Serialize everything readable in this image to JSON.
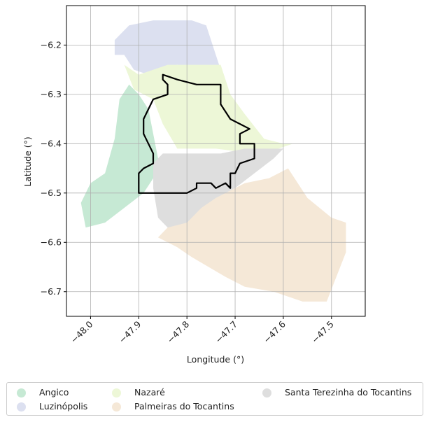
{
  "map": {
    "xlabel": "Longitude (°)",
    "ylabel": "Latitude (°)",
    "xlim": [
      -48.05,
      -47.43
    ],
    "ylim": [
      -6.75,
      -6.12
    ],
    "xticks": [
      -48.0,
      -47.9,
      -47.8,
      -47.7,
      -47.6,
      -47.5
    ],
    "xtick_labels": [
      "−48.0",
      "−47.9",
      "−47.8",
      "−47.7",
      "−47.6",
      "−47.5"
    ],
    "yticks": [
      -6.2,
      -6.3,
      -6.4,
      -6.5,
      -6.6,
      -6.7
    ],
    "ytick_labels": [
      "−6.2",
      "−6.3",
      "−6.4",
      "−6.5",
      "−6.6",
      "−6.7"
    ],
    "grid": true,
    "legend_position": "bottom-center"
  },
  "regions": [
    {
      "name": "Angico",
      "color": "#c6e9d4",
      "coords": [
        [
          -47.9,
          -6.3
        ],
        [
          -47.88,
          -6.33
        ],
        [
          -47.87,
          -6.38
        ],
        [
          -47.86,
          -6.43
        ],
        [
          -47.87,
          -6.47
        ],
        [
          -47.89,
          -6.5
        ],
        [
          -47.93,
          -6.53
        ],
        [
          -47.97,
          -6.56
        ],
        [
          -48.01,
          -6.57
        ],
        [
          -48.02,
          -6.52
        ],
        [
          -48.0,
          -6.48
        ],
        [
          -47.97,
          -6.46
        ],
        [
          -47.95,
          -6.39
        ],
        [
          -47.94,
          -6.31
        ],
        [
          -47.92,
          -6.28
        ]
      ]
    },
    {
      "name": "Luzinópolis",
      "color": "#dce0f0",
      "coords": [
        [
          -47.95,
          -6.19
        ],
        [
          -47.92,
          -6.16
        ],
        [
          -47.87,
          -6.15
        ],
        [
          -47.82,
          -6.15
        ],
        [
          -47.79,
          -6.15
        ],
        [
          -47.76,
          -6.16
        ],
        [
          -47.73,
          -6.25
        ],
        [
          -47.76,
          -6.25
        ],
        [
          -47.82,
          -6.24
        ],
        [
          -47.88,
          -6.26
        ],
        [
          -47.91,
          -6.25
        ],
        [
          -47.93,
          -6.22
        ],
        [
          -47.95,
          -6.22
        ]
      ]
    },
    {
      "name": "Nazaré",
      "color": "#edf7d7",
      "coords": [
        [
          -47.93,
          -6.24
        ],
        [
          -47.9,
          -6.26
        ],
        [
          -47.84,
          -6.24
        ],
        [
          -47.79,
          -6.24
        ],
        [
          -47.76,
          -6.24
        ],
        [
          -47.73,
          -6.24
        ],
        [
          -47.71,
          -6.3
        ],
        [
          -47.68,
          -6.34
        ],
        [
          -47.64,
          -6.39
        ],
        [
          -47.6,
          -6.4
        ],
        [
          -47.58,
          -6.4
        ],
        [
          -47.61,
          -6.41
        ],
        [
          -47.66,
          -6.42
        ],
        [
          -47.74,
          -6.41
        ],
        [
          -47.82,
          -6.41
        ],
        [
          -47.85,
          -6.36
        ],
        [
          -47.87,
          -6.31
        ],
        [
          -47.91,
          -6.29
        ]
      ]
    },
    {
      "name": "Palmeiras do Tocantins",
      "color": "#f5e8d7",
      "coords": [
        [
          -47.84,
          -6.57
        ],
        [
          -47.8,
          -6.54
        ],
        [
          -47.76,
          -6.51
        ],
        [
          -47.72,
          -6.5
        ],
        [
          -47.68,
          -6.48
        ],
        [
          -47.63,
          -6.47
        ],
        [
          -47.59,
          -6.45
        ],
        [
          -47.55,
          -6.51
        ],
        [
          -47.5,
          -6.55
        ],
        [
          -47.47,
          -6.56
        ],
        [
          -47.47,
          -6.62
        ],
        [
          -47.49,
          -6.67
        ],
        [
          -47.51,
          -6.72
        ],
        [
          -47.56,
          -6.72
        ],
        [
          -47.62,
          -6.7
        ],
        [
          -47.68,
          -6.69
        ],
        [
          -47.72,
          -6.67
        ],
        [
          -47.79,
          -6.63
        ],
        [
          -47.82,
          -6.61
        ],
        [
          -47.86,
          -6.59
        ]
      ]
    },
    {
      "name": "Santa Terezinha do Tocantins",
      "color": "#dedede",
      "coords": [
        [
          -47.85,
          -6.42
        ],
        [
          -47.78,
          -6.42
        ],
        [
          -47.73,
          -6.42
        ],
        [
          -47.68,
          -6.41
        ],
        [
          -47.63,
          -6.41
        ],
        [
          -47.6,
          -6.41
        ],
        [
          -47.62,
          -6.43
        ],
        [
          -47.66,
          -6.46
        ],
        [
          -47.7,
          -6.49
        ],
        [
          -47.74,
          -6.51
        ],
        [
          -47.77,
          -6.53
        ],
        [
          -47.8,
          -6.56
        ],
        [
          -47.84,
          -6.57
        ],
        [
          -47.86,
          -6.55
        ],
        [
          -47.87,
          -6.49
        ],
        [
          -47.87,
          -6.44
        ]
      ]
    }
  ],
  "outline": {
    "color": "#000000",
    "coords": [
      [
        -47.85,
        -6.26
      ],
      [
        -47.82,
        -6.27
      ],
      [
        -47.78,
        -6.28
      ],
      [
        -47.73,
        -6.28
      ],
      [
        -47.73,
        -6.32
      ],
      [
        -47.71,
        -6.35
      ],
      [
        -47.69,
        -6.36
      ],
      [
        -47.67,
        -6.37
      ],
      [
        -47.69,
        -6.38
      ],
      [
        -47.69,
        -6.4
      ],
      [
        -47.67,
        -6.4
      ],
      [
        -47.66,
        -6.4
      ],
      [
        -47.66,
        -6.43
      ],
      [
        -47.69,
        -6.44
      ],
      [
        -47.7,
        -6.46
      ],
      [
        -47.71,
        -6.46
      ],
      [
        -47.71,
        -6.49
      ],
      [
        -47.72,
        -6.48
      ],
      [
        -47.74,
        -6.49
      ],
      [
        -47.75,
        -6.48
      ],
      [
        -47.78,
        -6.48
      ],
      [
        -47.78,
        -6.49
      ],
      [
        -47.8,
        -6.5
      ],
      [
        -47.84,
        -6.5
      ],
      [
        -47.88,
        -6.5
      ],
      [
        -47.9,
        -6.5
      ],
      [
        -47.9,
        -6.48
      ],
      [
        -47.9,
        -6.46
      ],
      [
        -47.89,
        -6.45
      ],
      [
        -47.87,
        -6.44
      ],
      [
        -47.87,
        -6.42
      ],
      [
        -47.88,
        -6.4
      ],
      [
        -47.89,
        -6.38
      ],
      [
        -47.89,
        -6.35
      ],
      [
        -47.88,
        -6.33
      ],
      [
        -47.87,
        -6.31
      ],
      [
        -47.84,
        -6.3
      ],
      [
        -47.84,
        -6.28
      ],
      [
        -47.85,
        -6.27
      ]
    ]
  },
  "legend": {
    "items": [
      {
        "label": "Angico",
        "color": "#c6e9d4"
      },
      {
        "label": "Luzinópolis",
        "color": "#dce0f0"
      },
      {
        "label": "Nazaré",
        "color": "#edf7d7"
      },
      {
        "label": "Palmeiras do Tocantins",
        "color": "#f5e8d7"
      },
      {
        "label": "Santa Terezinha do Tocantins",
        "color": "#dedede"
      }
    ]
  }
}
